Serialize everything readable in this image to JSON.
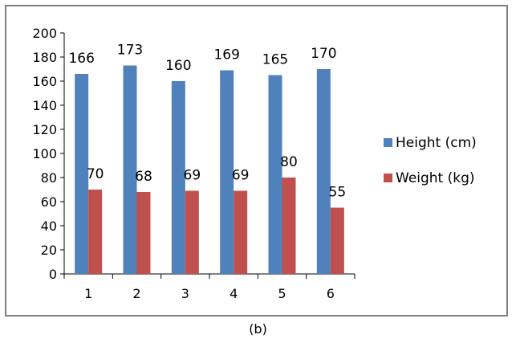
{
  "caption": "(b)",
  "chart_data": {
    "type": "bar",
    "categories": [
      "1",
      "2",
      "3",
      "4",
      "5",
      "6"
    ],
    "series": [
      {
        "name": "Height (cm)",
        "values": [
          166,
          173,
          160,
          169,
          165,
          170
        ],
        "color": "#4f81bd"
      },
      {
        "name": "Weight (kg)",
        "values": [
          70,
          68,
          69,
          69,
          80,
          55
        ],
        "color": "#c0504d"
      }
    ],
    "y_ticks": [
      "0",
      "20",
      "40",
      "60",
      "80",
      "100",
      "120",
      "140",
      "160",
      "180",
      "200"
    ],
    "ylim": [
      0,
      200
    ],
    "grid": false,
    "legend": "right",
    "data_labels": true
  }
}
